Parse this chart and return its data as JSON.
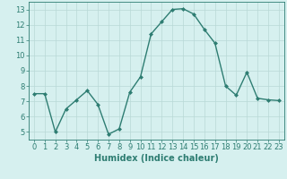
{
  "x": [
    0,
    1,
    2,
    3,
    4,
    5,
    6,
    7,
    8,
    9,
    10,
    11,
    12,
    13,
    14,
    15,
    16,
    17,
    18,
    19,
    20,
    21,
    22,
    23
  ],
  "y": [
    7.5,
    7.5,
    5.0,
    6.5,
    7.1,
    7.7,
    6.8,
    4.85,
    5.2,
    7.6,
    8.6,
    11.4,
    12.2,
    13.0,
    13.05,
    12.7,
    11.7,
    10.8,
    8.0,
    7.4,
    8.9,
    7.2,
    7.1,
    7.05
  ],
  "line_color": "#2e7d72",
  "marker": "D",
  "marker_size": 2.0,
  "bg_color": "#d6f0ef",
  "grid_color": "#b8d8d6",
  "xlabel": "Humidex (Indice chaleur)",
  "xlim": [
    -0.5,
    23.5
  ],
  "ylim": [
    4.5,
    13.5
  ],
  "yticks": [
    5,
    6,
    7,
    8,
    9,
    10,
    11,
    12,
    13
  ],
  "xticks": [
    0,
    1,
    2,
    3,
    4,
    5,
    6,
    7,
    8,
    9,
    10,
    11,
    12,
    13,
    14,
    15,
    16,
    17,
    18,
    19,
    20,
    21,
    22,
    23
  ],
  "tick_color": "#2e7d72",
  "label_color": "#2e7d72",
  "xlabel_fontsize": 7,
  "tick_fontsize": 6,
  "linewidth": 1.0
}
